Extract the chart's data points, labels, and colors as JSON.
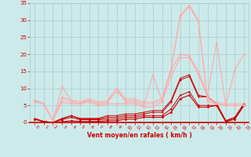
{
  "background_color": "#cceaea",
  "grid_color": "#aacccc",
  "xlabel": "Vent moyen/en rafales ( km/h )",
  "xlabel_color": "#cc0000",
  "ylabel_color": "#cc0000",
  "xlim": [
    -0.5,
    23.5
  ],
  "ylim": [
    0,
    35
  ],
  "yticks": [
    0,
    5,
    10,
    15,
    20,
    25,
    30,
    35
  ],
  "xticks": [
    0,
    1,
    2,
    3,
    4,
    5,
    6,
    7,
    8,
    9,
    10,
    11,
    12,
    13,
    14,
    15,
    16,
    17,
    18,
    19,
    20,
    21,
    22,
    23
  ],
  "series": [
    {
      "x": [
        0,
        1,
        2,
        3,
        4,
        5,
        6,
        7,
        8,
        9,
        10,
        11,
        12,
        13,
        14,
        15,
        16,
        17,
        18,
        19,
        20,
        21,
        22,
        23
      ],
      "y": [
        1.0,
        0.2,
        0.0,
        0.2,
        0.5,
        0.3,
        0.3,
        0.3,
        0.5,
        0.5,
        1.0,
        1.0,
        1.5,
        1.5,
        1.5,
        3.0,
        7.0,
        8.0,
        4.5,
        4.5,
        5.0,
        0.2,
        1.0,
        5.0
      ],
      "color": "#cc0000",
      "lw": 0.8,
      "marker": "D",
      "ms": 1.5
    },
    {
      "x": [
        0,
        1,
        2,
        3,
        4,
        5,
        6,
        7,
        8,
        9,
        10,
        11,
        12,
        13,
        14,
        15,
        16,
        17,
        18,
        19,
        20,
        21,
        22,
        23
      ],
      "y": [
        1.0,
        0.2,
        0.0,
        0.8,
        1.5,
        0.8,
        0.8,
        0.8,
        1.0,
        1.0,
        1.5,
        1.5,
        2.0,
        2.0,
        2.0,
        4.0,
        8.0,
        9.0,
        5.0,
        5.0,
        5.0,
        0.3,
        1.0,
        5.0
      ],
      "color": "#cc0000",
      "lw": 0.7,
      "marker": "s",
      "ms": 1.2
    },
    {
      "x": [
        0,
        1,
        2,
        3,
        4,
        5,
        6,
        7,
        8,
        9,
        10,
        11,
        12,
        13,
        14,
        15,
        16,
        17,
        18,
        19,
        20,
        21,
        22,
        23
      ],
      "y": [
        1.0,
        0.3,
        0.0,
        1.0,
        2.0,
        1.0,
        1.0,
        1.0,
        1.5,
        1.5,
        2.0,
        2.0,
        2.5,
        3.0,
        3.0,
        6.0,
        12.5,
        13.5,
        7.5,
        7.5,
        5.5,
        0.5,
        1.5,
        5.5
      ],
      "color": "#cc0000",
      "lw": 0.7,
      "marker": "o",
      "ms": 1.2
    },
    {
      "x": [
        0,
        1,
        2,
        3,
        4,
        5,
        6,
        7,
        8,
        9,
        10,
        11,
        12,
        13,
        14,
        15,
        16,
        17,
        18,
        19,
        20,
        21,
        22,
        23
      ],
      "y": [
        1.2,
        0.3,
        0.0,
        1.2,
        2.0,
        1.2,
        1.2,
        1.2,
        2.0,
        2.0,
        2.5,
        2.5,
        3.0,
        3.5,
        3.5,
        6.5,
        13.0,
        14.0,
        8.0,
        7.5,
        5.5,
        0.5,
        1.5,
        5.5
      ],
      "color": "#cc0000",
      "lw": 0.7,
      "marker": "^",
      "ms": 1.2
    },
    {
      "x": [
        0,
        1,
        2,
        3,
        4,
        5,
        6,
        7,
        8,
        9,
        10,
        11,
        12,
        13,
        14,
        15,
        16,
        17,
        18,
        19,
        20,
        21,
        22,
        23
      ],
      "y": [
        6.5,
        5.5,
        0.5,
        6.0,
        5.5,
        5.5,
        6.0,
        5.0,
        5.5,
        5.5,
        5.5,
        5.5,
        4.5,
        4.5,
        6.0,
        13.5,
        19.0,
        19.0,
        14.0,
        7.5,
        5.5,
        5.0,
        5.0,
        5.0
      ],
      "color": "#ffaaaa",
      "lw": 0.8,
      "marker": "D",
      "ms": 1.5
    },
    {
      "x": [
        0,
        1,
        2,
        3,
        4,
        5,
        6,
        7,
        8,
        9,
        10,
        11,
        12,
        13,
        14,
        15,
        16,
        17,
        18,
        19,
        20,
        21,
        22,
        23
      ],
      "y": [
        6.0,
        5.5,
        0.5,
        10.5,
        6.5,
        6.0,
        6.5,
        5.5,
        6.0,
        10.0,
        6.0,
        6.0,
        5.0,
        14.0,
        6.5,
        15.5,
        20.0,
        19.5,
        15.0,
        8.0,
        23.5,
        5.0,
        15.5,
        20.0
      ],
      "color": "#ffaaaa",
      "lw": 0.8,
      "marker": "o",
      "ms": 1.5
    },
    {
      "x": [
        0,
        1,
        2,
        3,
        4,
        5,
        6,
        7,
        8,
        9,
        10,
        11,
        12,
        13,
        14,
        15,
        16,
        17,
        18,
        19,
        20,
        21,
        22,
        23
      ],
      "y": [
        6.5,
        5.5,
        0.5,
        7.0,
        6.0,
        5.5,
        6.5,
        5.5,
        6.0,
        9.0,
        6.5,
        6.5,
        5.5,
        5.5,
        6.5,
        15.5,
        31.0,
        34.0,
        29.5,
        6.0,
        5.5,
        5.0,
        5.0,
        5.0
      ],
      "color": "#ffaaaa",
      "lw": 0.7,
      "marker": "s",
      "ms": 1.2
    },
    {
      "x": [
        0,
        1,
        2,
        3,
        4,
        5,
        6,
        7,
        8,
        9,
        10,
        11,
        12,
        13,
        14,
        15,
        16,
        17,
        18,
        19,
        20,
        21,
        22,
        23
      ],
      "y": [
        6.5,
        5.5,
        0.5,
        7.5,
        6.5,
        6.0,
        7.0,
        6.0,
        6.5,
        10.0,
        7.0,
        7.0,
        6.0,
        6.0,
        7.0,
        16.0,
        31.5,
        34.5,
        30.0,
        6.5,
        6.0,
        5.5,
        5.5,
        5.5
      ],
      "color": "#ffaaaa",
      "lw": 0.7,
      "marker": "^",
      "ms": 1.2
    }
  ]
}
